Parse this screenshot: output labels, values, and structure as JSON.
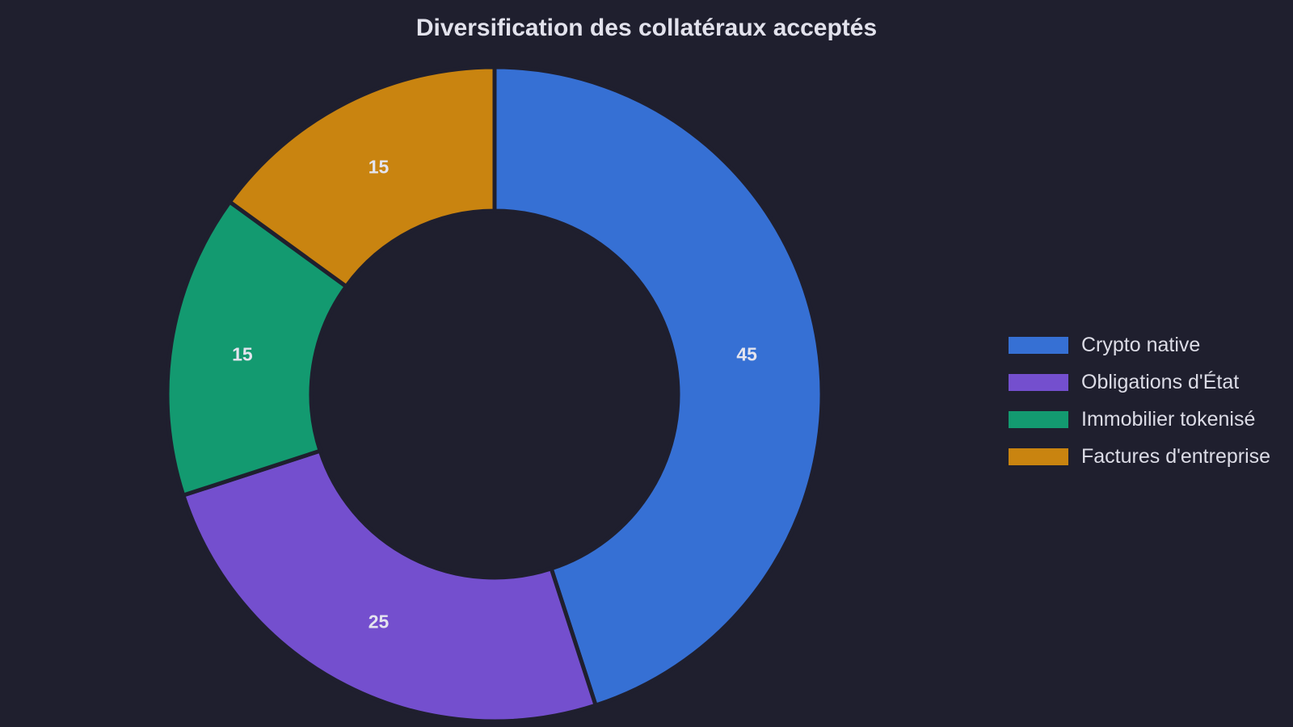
{
  "chart_data": {
    "type": "pie",
    "variant": "donut",
    "title": "Diversification des collatéraux acceptés",
    "categories": [
      "Crypto native",
      "Obligations d'État",
      "Immobilier tokenisé",
      "Factures d'entreprise"
    ],
    "values": [
      45,
      25,
      15,
      15
    ],
    "data_labels": [
      "45",
      "25",
      "15",
      "15"
    ],
    "colors": [
      "#3670d4",
      "#744fce",
      "#139a70",
      "#c98410"
    ],
    "background": "#1f1f2e",
    "legend_position": "right"
  }
}
